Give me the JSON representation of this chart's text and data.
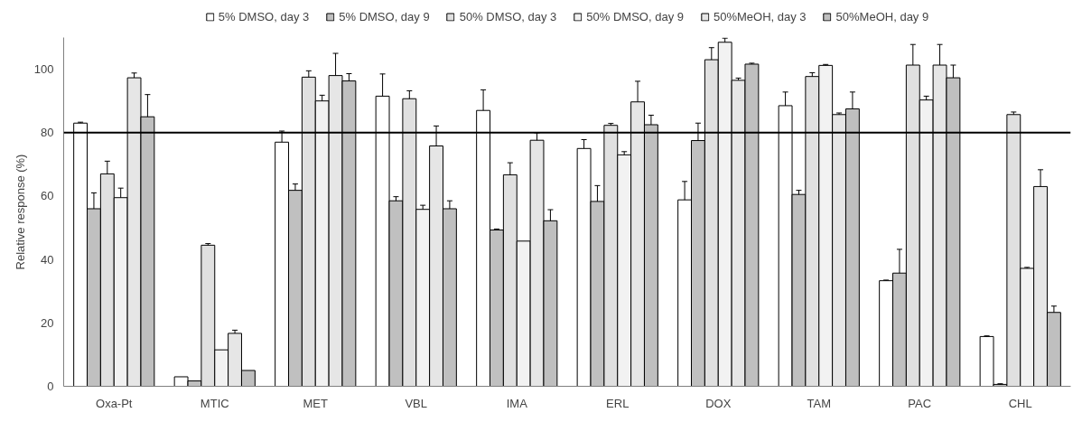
{
  "chart_data": {
    "type": "bar",
    "ylabel": "Relative response (%)",
    "categories": [
      "Oxa-Pt",
      "MTIC",
      "MET",
      "VBL",
      "IMA",
      "ERL",
      "DOX",
      "TAM",
      "PAC",
      "CHL"
    ],
    "series": [
      {
        "name": "5% DMSO, day 3",
        "color": "#ffffff",
        "values": [
          83,
          3,
          77,
          91.5,
          87,
          75,
          58.8,
          88.5,
          33.3,
          15.7
        ],
        "errors": [
          0.3,
          null,
          3.5,
          7,
          6.5,
          2.8,
          5.8,
          4.3,
          0.2,
          0.2
        ]
      },
      {
        "name": "5% DMSO, day 9",
        "color": "#c0c0c0",
        "values": [
          56,
          1.7,
          61.8,
          58.5,
          49.3,
          58.3,
          77.5,
          60.5,
          35.7,
          0.6
        ],
        "errors": [
          5,
          null,
          2,
          1.3,
          0.3,
          5,
          5.5,
          1.3,
          7.5,
          0.2
        ]
      },
      {
        "name": "50% DMSO, day 3",
        "color": "#e0e0e0",
        "values": [
          67,
          44.5,
          97.5,
          90.7,
          66.7,
          82.3,
          103,
          97.7,
          101.3,
          85.7
        ],
        "errors": [
          4,
          0.5,
          2,
          2.5,
          3.8,
          0.6,
          3.8,
          1.2,
          6.5,
          0.8
        ]
      },
      {
        "name": "50% DMSO, day 9",
        "color": "#f2f2f2",
        "values": [
          59.5,
          11.5,
          90,
          55.8,
          45.8,
          73,
          108.5,
          101.2,
          90.3,
          37.2
        ],
        "errors": [
          3,
          null,
          1.8,
          1.3,
          null,
          1,
          1.3,
          0.3,
          1.2,
          0.3
        ]
      },
      {
        "name": "50%MeOH, day 3",
        "color": "#e6e6e6",
        "values": [
          97.3,
          16.7,
          98,
          75.8,
          77.6,
          89.7,
          96.5,
          85.7,
          101.3,
          63
        ],
        "errors": [
          1.5,
          1,
          7,
          6.3,
          2.3,
          6.5,
          0.7,
          0.5,
          6.5,
          5.3
        ]
      },
      {
        "name": "50%MeOH, day 9",
        "color": "#bfbfbf",
        "values": [
          85,
          5,
          96.3,
          56,
          52.2,
          82.5,
          101.6,
          87.5,
          97.3,
          23.3
        ],
        "errors": [
          7,
          null,
          2.3,
          2.5,
          3.5,
          3,
          0.3,
          5.3,
          4,
          2
        ]
      }
    ],
    "ylim": [
      0,
      110
    ],
    "yticks": [
      0,
      20,
      40,
      60,
      80,
      100
    ],
    "ref_lines": [
      {
        "axis": "y",
        "value": 80,
        "color": "#000000"
      }
    ],
    "grid": false,
    "legend": "top"
  }
}
